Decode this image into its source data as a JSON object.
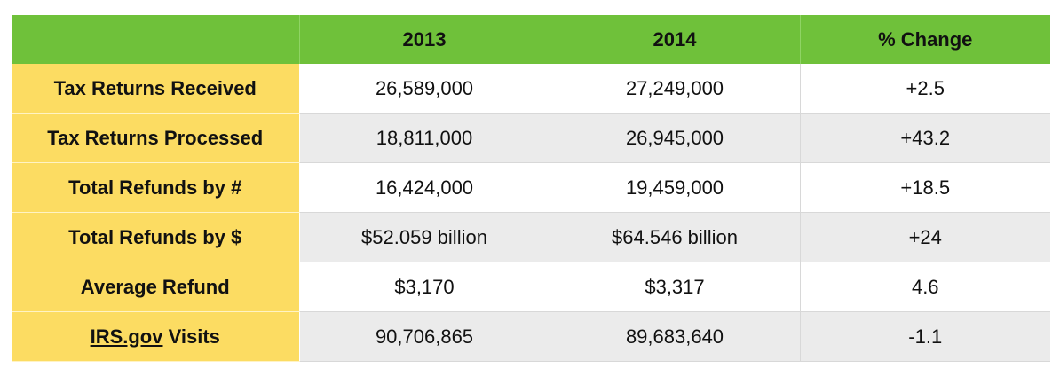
{
  "table": {
    "headers": [
      "",
      "2013",
      "2014",
      "% Change"
    ],
    "rows": [
      {
        "label": "Tax Returns Received",
        "y2013": "26,589,000",
        "y2014": "27,249,000",
        "change": "+2.5"
      },
      {
        "label": "Tax Returns Processed",
        "y2013": "18,811,000",
        "y2014": "26,945,000",
        "change": "+43.2"
      },
      {
        "label": "Total Refunds by #",
        "y2013": "16,424,000",
        "y2014": "19,459,000",
        "change": "+18.5"
      },
      {
        "label": "Total Refunds by $",
        "y2013": "$52.059 billion",
        "y2014": "$64.546 billion",
        "change": "+24"
      },
      {
        "label": "Average Refund",
        "y2013": "$3,170",
        "y2014": "$3,317",
        "change": "4.6"
      },
      {
        "label_link": "IRS.gov",
        "label_rest": " Visits",
        "y2013": "90,706,865",
        "y2014": "89,683,640",
        "change": "-1.1"
      }
    ]
  },
  "colors": {
    "header_green": "#6fc13a",
    "label_yellow": "#fcdc62",
    "stripe_gray": "#ebebeb"
  }
}
